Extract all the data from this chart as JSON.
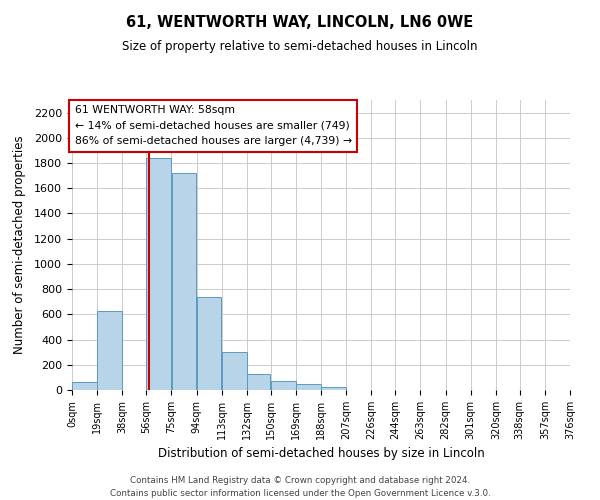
{
  "title": "61, WENTWORTH WAY, LINCOLN, LN6 0WE",
  "subtitle": "Size of property relative to semi-detached houses in Lincoln",
  "xlabel": "Distribution of semi-detached houses by size in Lincoln",
  "ylabel": "Number of semi-detached properties",
  "footer_line1": "Contains HM Land Registry data © Crown copyright and database right 2024.",
  "footer_line2": "Contains public sector information licensed under the Open Government Licence v.3.0.",
  "bar_edges": [
    0,
    19,
    38,
    56,
    75,
    94,
    113,
    132,
    150,
    169,
    188,
    207,
    226,
    244,
    263,
    282,
    301,
    320,
    338,
    357,
    376
  ],
  "bar_heights": [
    60,
    630,
    0,
    1840,
    1720,
    740,
    300,
    130,
    70,
    45,
    20,
    0,
    0,
    0,
    0,
    0,
    0,
    0,
    0,
    0
  ],
  "bar_color": "#b8d4e8",
  "bar_edge_color": "#5a9abf",
  "property_line_x": 58,
  "property_line_color": "#cc0000",
  "annotation_title": "61 WENTWORTH WAY: 58sqm",
  "annotation_line1": "← 14% of semi-detached houses are smaller (749)",
  "annotation_line2": "86% of semi-detached houses are larger (4,739) →",
  "annotation_box_color": "#ffffff",
  "annotation_box_edge": "#cc0000",
  "xlim": [
    0,
    376
  ],
  "ylim": [
    0,
    2300
  ],
  "yticks": [
    0,
    200,
    400,
    600,
    800,
    1000,
    1200,
    1400,
    1600,
    1800,
    2000,
    2200
  ],
  "xtick_labels": [
    "0sqm",
    "19sqm",
    "38sqm",
    "56sqm",
    "75sqm",
    "94sqm",
    "113sqm",
    "132sqm",
    "150sqm",
    "169sqm",
    "188sqm",
    "207sqm",
    "226sqm",
    "244sqm",
    "263sqm",
    "282sqm",
    "301sqm",
    "320sqm",
    "338sqm",
    "357sqm",
    "376sqm"
  ],
  "xtick_positions": [
    0,
    19,
    38,
    56,
    75,
    94,
    113,
    132,
    150,
    169,
    188,
    207,
    226,
    244,
    263,
    282,
    301,
    320,
    338,
    357,
    376
  ],
  "grid_color": "#cccccc",
  "background_color": "#ffffff"
}
